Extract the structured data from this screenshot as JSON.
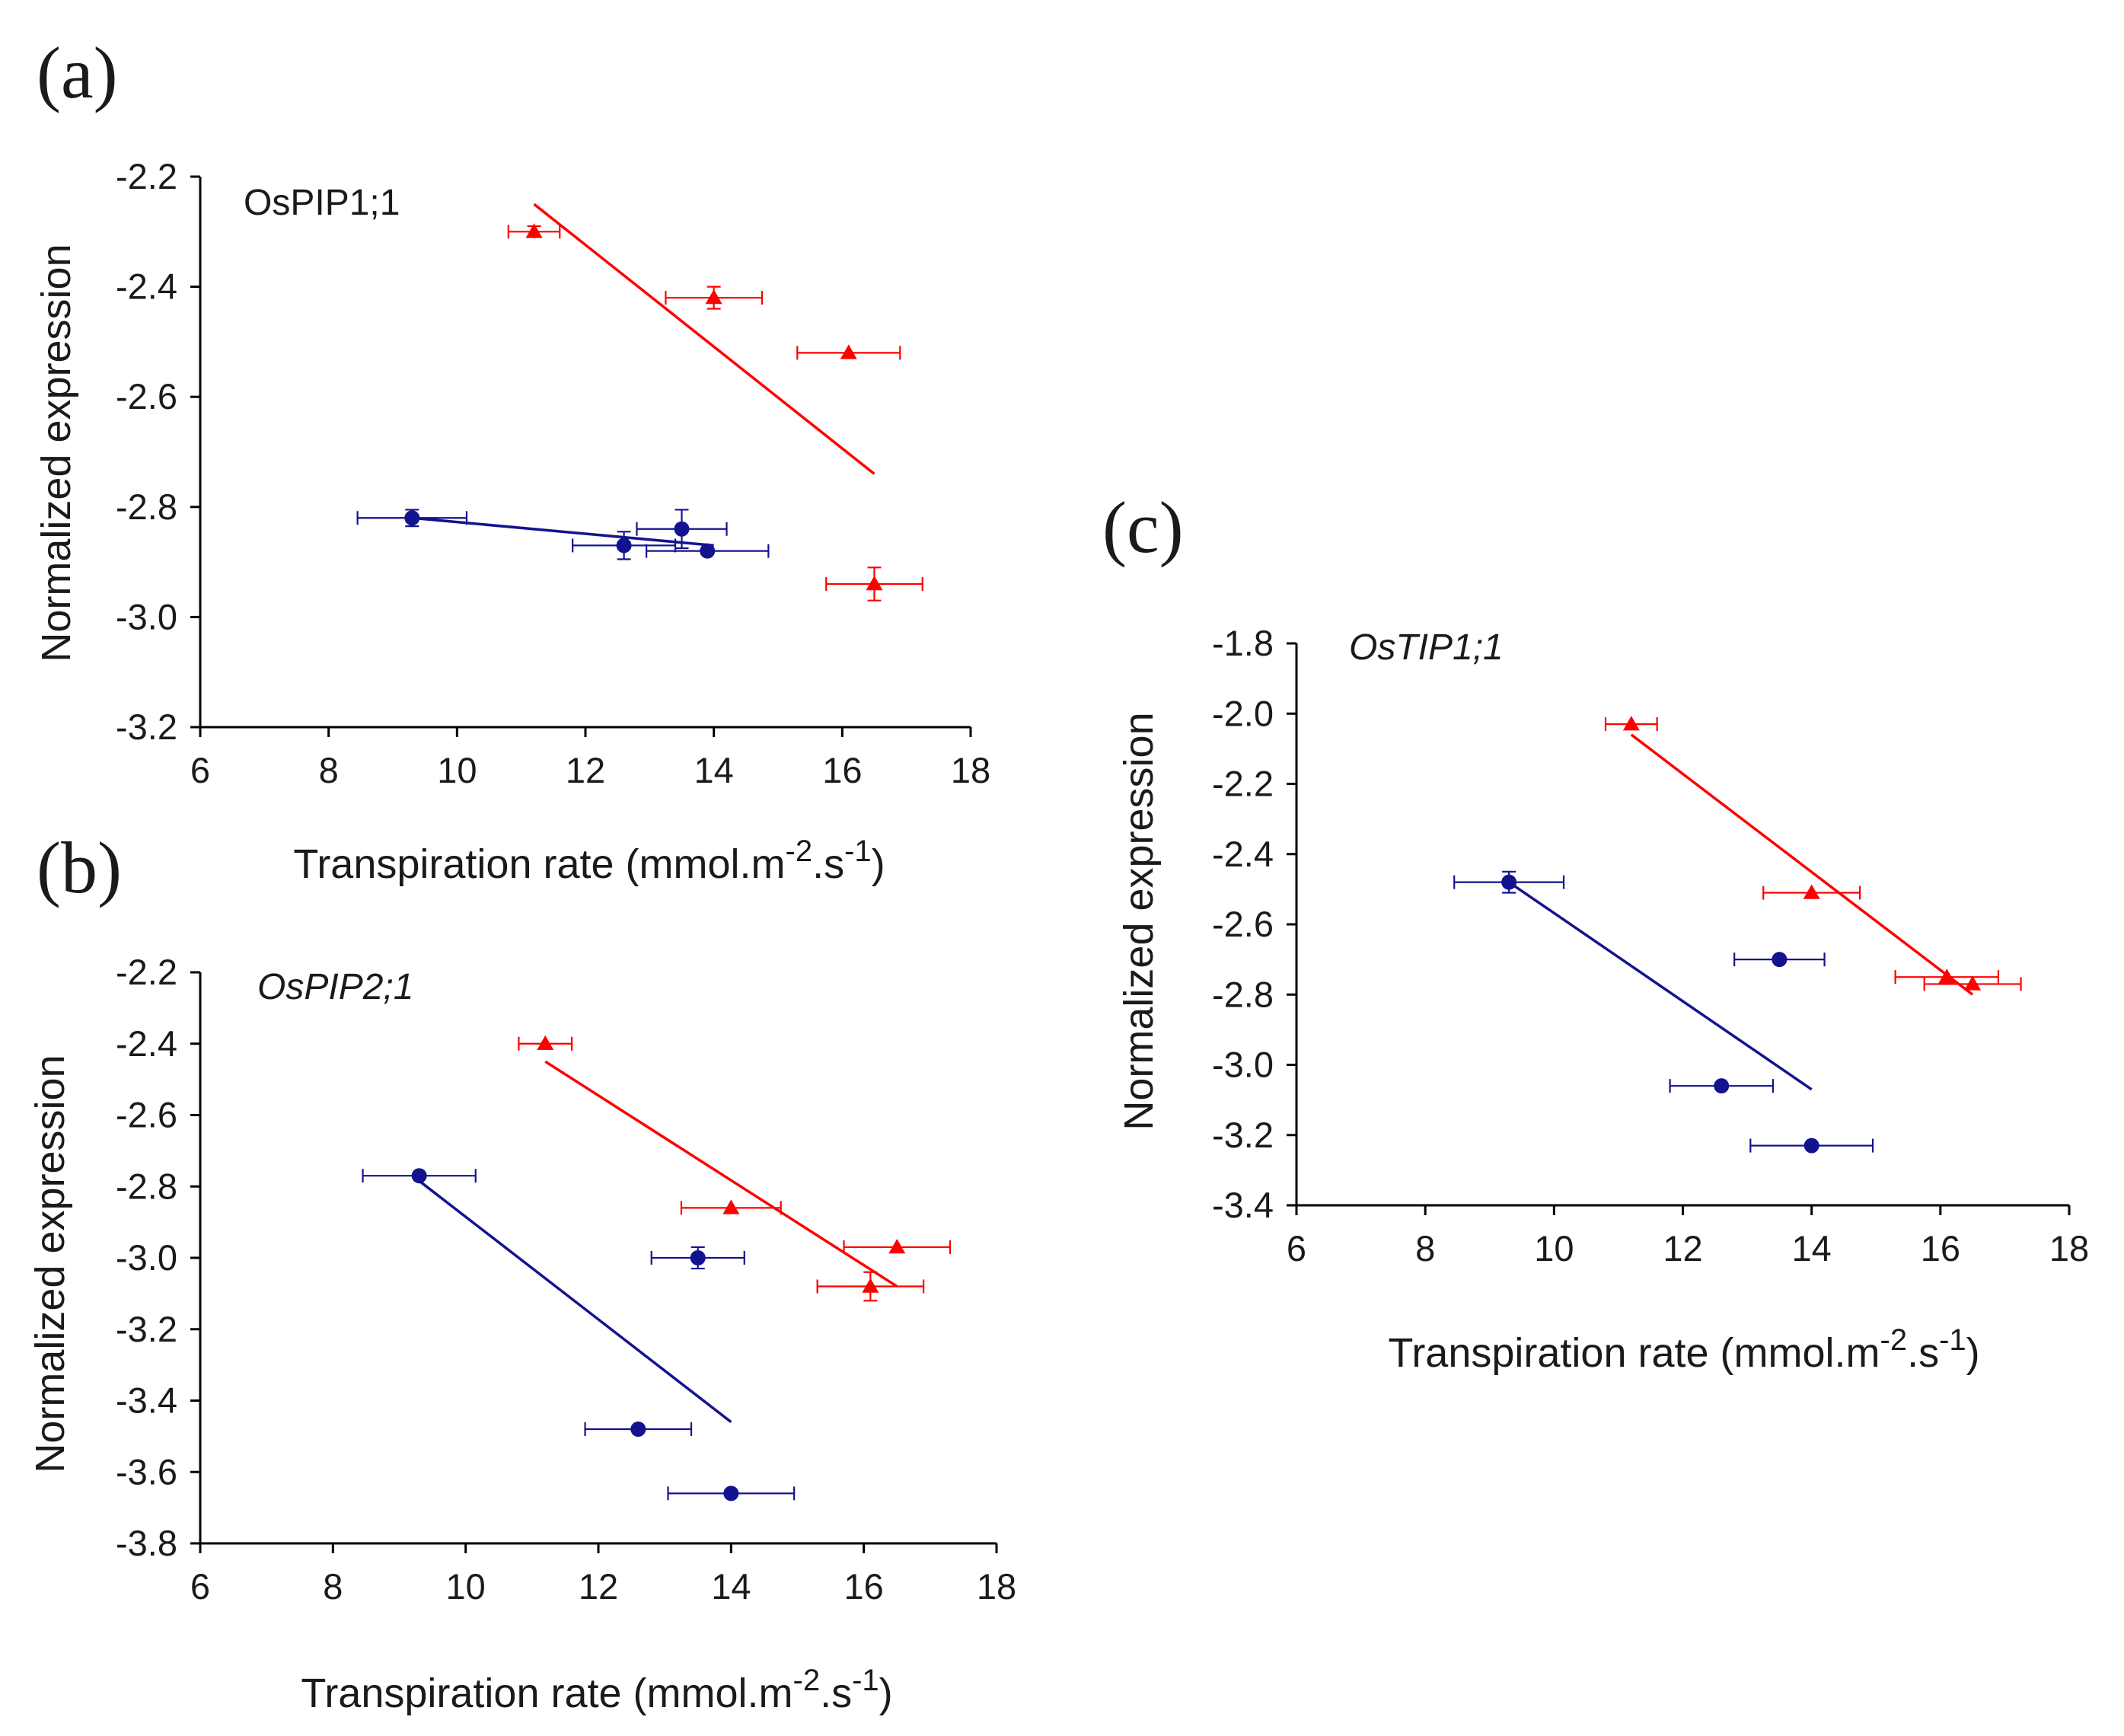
{
  "figure": {
    "colors": {
      "triangle_series": "#ff0000",
      "circle_series": "#13138f",
      "axes": "#000000"
    }
  },
  "chart_data": [
    {
      "type": "scatter",
      "panel": "(a)",
      "title": "OsPIP1;1",
      "title_style": "normal",
      "xlabel": "Transpiration rate (mmol.m",
      "xlabel_sup1": "-2",
      "xlabel_mid": ".s",
      "xlabel_sup2": "-1",
      "xlabel_end": ")",
      "ylabel": "Normalized expression",
      "xlim": [
        6,
        18
      ],
      "ylim": [
        -3.2,
        -2.2
      ],
      "xticks": [
        6,
        8,
        10,
        12,
        14,
        16,
        18
      ],
      "yticks": [
        -2.2,
        -2.4,
        -2.6,
        -2.8,
        -3.0,
        -3.2
      ],
      "ytick_labels": [
        "-2.2",
        "-2.4",
        "-2.6",
        "-2.8",
        "-3.0",
        "-3.2"
      ],
      "series": [
        {
          "name": "triangles",
          "marker": "triangle",
          "color": "#ff0000",
          "points": [
            {
              "x": 11.2,
              "y": -2.3,
              "xerr": 0.4,
              "yerr": 0.01
            },
            {
              "x": 14.0,
              "y": -2.42,
              "xerr": 0.75,
              "yerr": 0.02
            },
            {
              "x": 16.1,
              "y": -2.52,
              "xerr": 0.8,
              "yerr": 0.0
            },
            {
              "x": 16.5,
              "y": -2.94,
              "xerr": 0.75,
              "yerr": 0.03
            }
          ],
          "trendline": {
            "x": [
              11.2,
              16.5
            ],
            "y": [
              -2.25,
              -2.74
            ]
          }
        },
        {
          "name": "circles",
          "marker": "circle",
          "color": "#13138f",
          "points": [
            {
              "x": 9.3,
              "y": -2.82,
              "xerr": 0.85,
              "yerr": 0.015
            },
            {
              "x": 12.6,
              "y": -2.87,
              "xerr": 0.8,
              "yerr": 0.025
            },
            {
              "x": 13.5,
              "y": -2.84,
              "xerr": 0.7,
              "yerr": 0.035
            },
            {
              "x": 13.9,
              "y": -2.88,
              "xerr": 0.95,
              "yerr": 0.0
            }
          ],
          "trendline": {
            "x": [
              9.3,
              14.0
            ],
            "y": [
              -2.82,
              -2.87
            ]
          }
        }
      ]
    },
    {
      "type": "scatter",
      "panel": "(b)",
      "title": "OsPIP2;1",
      "title_style": "italic",
      "xlabel": "Transpiration rate (mmol.m",
      "xlabel_sup1": "-2",
      "xlabel_mid": ".s",
      "xlabel_sup2": "-1",
      "xlabel_end": ")",
      "ylabel": "Normalized expression",
      "xlim": [
        6,
        18
      ],
      "ylim": [
        -3.8,
        -2.2
      ],
      "xticks": [
        6,
        8,
        10,
        12,
        14,
        16,
        18
      ],
      "yticks": [
        -2.2,
        -2.4,
        -2.6,
        -2.8,
        -3.0,
        -3.2,
        -3.4,
        -3.6,
        -3.8
      ],
      "ytick_labels": [
        "-2.2",
        "-2.4",
        "-2.6",
        "-2.8",
        "-3.0",
        "-3.2",
        "-3.4",
        "-3.6",
        "-3.8"
      ],
      "series": [
        {
          "name": "triangles",
          "marker": "triangle",
          "color": "#ff0000",
          "points": [
            {
              "x": 11.2,
              "y": -2.4,
              "xerr": 0.4,
              "yerr": 0.0
            },
            {
              "x": 14.0,
              "y": -2.86,
              "xerr": 0.75,
              "yerr": 0.0
            },
            {
              "x": 16.5,
              "y": -2.97,
              "xerr": 0.8,
              "yerr": 0.0
            },
            {
              "x": 16.1,
              "y": -3.08,
              "xerr": 0.8,
              "yerr": 0.04
            }
          ],
          "trendline": {
            "x": [
              11.2,
              16.5
            ],
            "y": [
              -2.45,
              -3.08
            ]
          }
        },
        {
          "name": "circles",
          "marker": "circle",
          "color": "#13138f",
          "points": [
            {
              "x": 9.3,
              "y": -2.77,
              "xerr": 0.85,
              "yerr": 0.0
            },
            {
              "x": 13.5,
              "y": -3.0,
              "xerr": 0.7,
              "yerr": 0.03
            },
            {
              "x": 12.6,
              "y": -3.48,
              "xerr": 0.8,
              "yerr": 0.0
            },
            {
              "x": 14.0,
              "y": -3.66,
              "xerr": 0.95,
              "yerr": 0.0
            }
          ],
          "trendline": {
            "x": [
              9.2,
              14.0
            ],
            "y": [
              -2.77,
              -3.46
            ]
          }
        }
      ]
    },
    {
      "type": "scatter",
      "panel": "(c)",
      "title": "OsTIP1;1",
      "title_style": "italic",
      "xlabel": "Transpiration rate (mmol.m",
      "xlabel_sup1": "-2",
      "xlabel_mid": ".s",
      "xlabel_sup2": "-1",
      "xlabel_end": ")",
      "ylabel": "Normalized expression",
      "xlim": [
        6,
        18
      ],
      "ylim": [
        -3.4,
        -1.8
      ],
      "xticks": [
        6,
        8,
        10,
        12,
        14,
        16,
        18
      ],
      "yticks": [
        -1.8,
        -2.0,
        -2.2,
        -2.4,
        -2.6,
        -2.8,
        -3.0,
        -3.2,
        -3.4
      ],
      "ytick_labels": [
        "-1.8",
        "-2.0",
        "-2.2",
        "-2.4",
        "-2.6",
        "-2.8",
        "-3.0",
        "-3.2",
        "-3.4"
      ],
      "series": [
        {
          "name": "triangles",
          "marker": "triangle",
          "color": "#ff0000",
          "points": [
            {
              "x": 11.2,
              "y": -2.03,
              "xerr": 0.4,
              "yerr": 0.0
            },
            {
              "x": 14.0,
              "y": -2.51,
              "xerr": 0.75,
              "yerr": 0.0
            },
            {
              "x": 16.1,
              "y": -2.75,
              "xerr": 0.8,
              "yerr": 0.0
            },
            {
              "x": 16.5,
              "y": -2.77,
              "xerr": 0.75,
              "yerr": 0.0
            }
          ],
          "trendline": {
            "x": [
              11.2,
              16.5
            ],
            "y": [
              -2.06,
              -2.8
            ]
          }
        },
        {
          "name": "circles",
          "marker": "circle",
          "color": "#13138f",
          "points": [
            {
              "x": 9.3,
              "y": -2.48,
              "xerr": 0.85,
              "yerr": 0.03
            },
            {
              "x": 13.5,
              "y": -2.7,
              "xerr": 0.7,
              "yerr": 0.0
            },
            {
              "x": 12.6,
              "y": -3.06,
              "xerr": 0.8,
              "yerr": 0.0
            },
            {
              "x": 14.0,
              "y": -3.23,
              "xerr": 0.95,
              "yerr": 0.0
            }
          ],
          "trendline": {
            "x": [
              9.3,
              14.0
            ],
            "y": [
              -2.48,
              -3.07
            ]
          }
        }
      ]
    }
  ]
}
